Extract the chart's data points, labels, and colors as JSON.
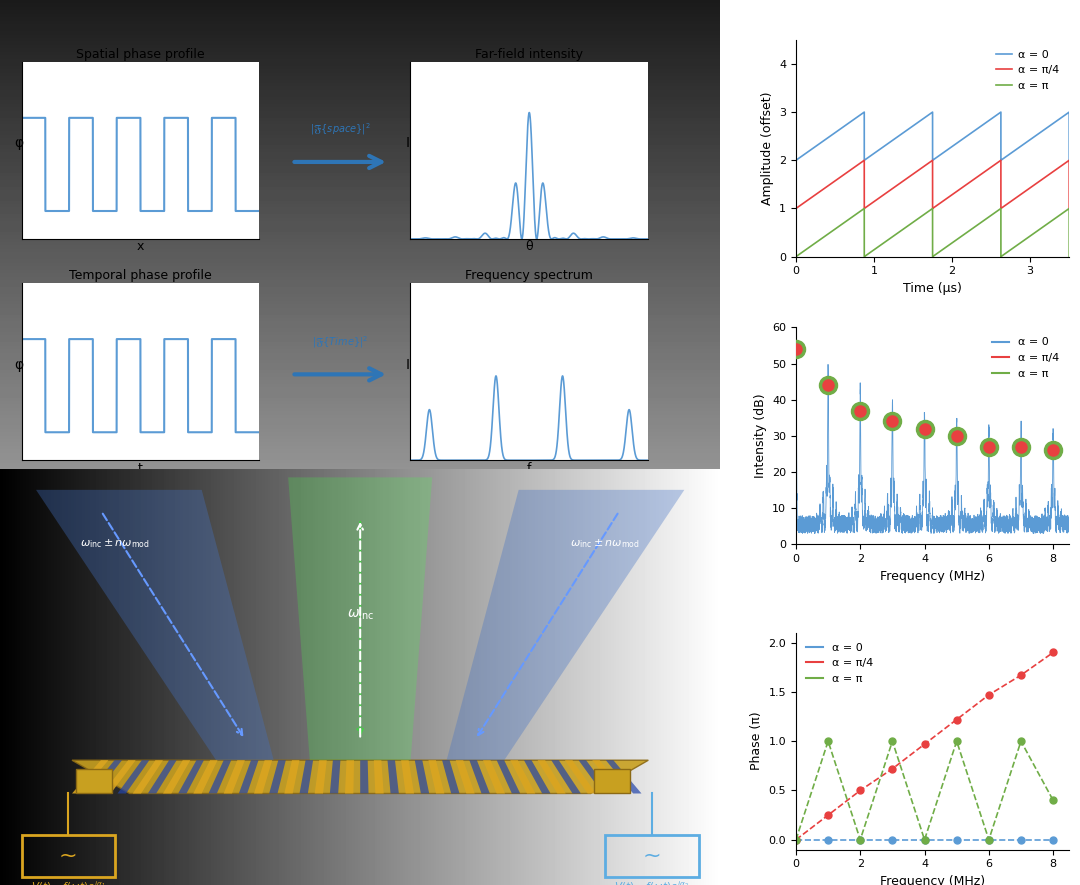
{
  "fig_width": 10.8,
  "fig_height": 8.85,
  "plot1": {
    "xlabel": "Time (μs)",
    "ylabel": "Amplitude (offset)",
    "xlim": [
      0,
      3.5
    ],
    "ylim": [
      0,
      4.5
    ],
    "yticks": [
      0,
      1,
      2,
      3,
      4
    ],
    "xticks": [
      0,
      1,
      2,
      3
    ],
    "colors": [
      "#5b9bd5",
      "#e84040",
      "#70ad47"
    ],
    "offsets": [
      2.0,
      1.0,
      0.0
    ],
    "amplitudes": [
      1.0,
      1.0,
      1.0
    ],
    "period": 0.875,
    "legend": [
      "α = 0",
      "α = π/4",
      "α = π"
    ]
  },
  "plot2": {
    "xlabel": "Frequency (MHz)",
    "ylabel": "Intensity (dB)",
    "xlim": [
      0,
      8.5
    ],
    "ylim": [
      0,
      60
    ],
    "yticks": [
      0,
      10,
      20,
      30,
      40,
      50,
      60
    ],
    "xticks": [
      0,
      2,
      4,
      6,
      8
    ],
    "peak_freqs": [
      0.0,
      1.0,
      2.0,
      3.0,
      4.0,
      5.0,
      6.0,
      7.0,
      8.0
    ],
    "peak_dbs": [
      54,
      44,
      37,
      34,
      32,
      30,
      27,
      27,
      26
    ],
    "line_color": "#5b9bd5",
    "marker_outer_color": "#70ad47",
    "marker_inner_color": "#e84040",
    "legend": [
      "α = 0",
      "α = π/4",
      "α = π"
    ]
  },
  "plot3": {
    "xlabel": "Frequency (MHz)",
    "ylabel": "Phase (π)",
    "xlim": [
      0,
      8.5
    ],
    "ylim": [
      -0.1,
      2.1
    ],
    "yticks": [
      0.0,
      0.5,
      1.0,
      1.5,
      2.0
    ],
    "xticks": [
      0,
      2,
      4,
      6,
      8
    ],
    "freq_points": [
      0,
      1,
      2,
      3,
      4,
      5,
      6,
      7,
      8
    ],
    "alpha0_phase": [
      0,
      0,
      0,
      0,
      0,
      0,
      0,
      0,
      0
    ],
    "alpha_pi4_phase": [
      0,
      0.25,
      0.5,
      0.72,
      0.97,
      1.22,
      1.47,
      1.67,
      1.9
    ],
    "alpha_pi_phase": [
      0,
      1.0,
      0,
      1.0,
      0,
      1.0,
      0,
      1.0,
      0.4
    ],
    "colors": [
      "#5b9bd5",
      "#e84040",
      "#70ad47"
    ],
    "legend": [
      "α = 0",
      "α = π/4",
      "α = π"
    ]
  }
}
